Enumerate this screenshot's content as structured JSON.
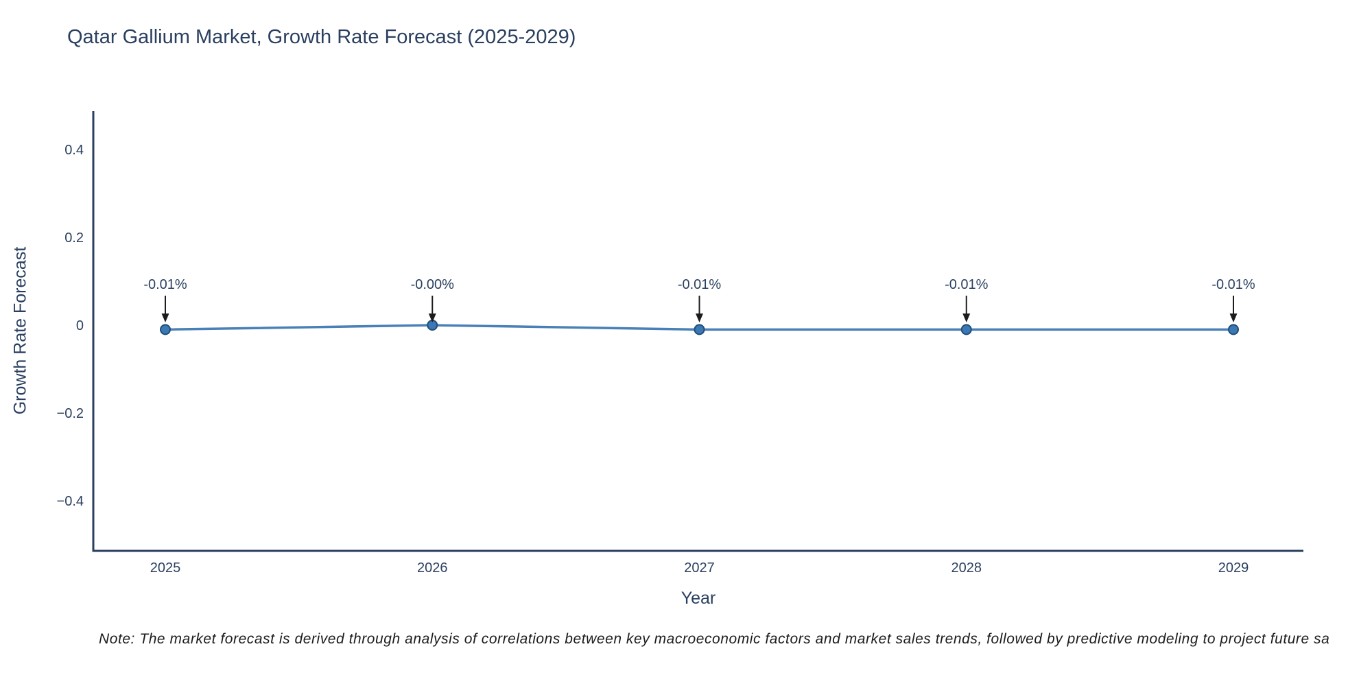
{
  "chart_data": {
    "type": "line",
    "title": "Qatar Gallium Market, Growth Rate Forecast (2025-2029)",
    "xlabel": "Year",
    "ylabel": "Growth Rate Forecast",
    "x": [
      "2025",
      "2026",
      "2027",
      "2028",
      "2029"
    ],
    "y": [
      -0.01,
      -0.0,
      -0.01,
      -0.01,
      -0.01
    ],
    "point_labels": [
      "-0.01%",
      "-0.00%",
      "-0.01%",
      "-0.01%",
      "-0.01%"
    ],
    "ytick_values": [
      0.4,
      0.2,
      0,
      -0.2,
      -0.4
    ],
    "ytick_labels": [
      "0.4",
      "0.2",
      "0",
      "−0.2",
      "−0.4"
    ],
    "ylim": [
      -0.52,
      0.49
    ],
    "grid": false,
    "legend": false,
    "line_color": "#4a80b8",
    "marker_color": "#3c78b4",
    "marker_edge_color": "#1f4e79",
    "axis_color": "#2a3f5f",
    "text_color": "#2a3f5f",
    "annotation_arrow_color": "#1c1c1c"
  },
  "note": "Note: The market forecast is derived through analysis of correlations between key macroeconomic factors and market sales trends, followed by predictive modeling to project future sa"
}
